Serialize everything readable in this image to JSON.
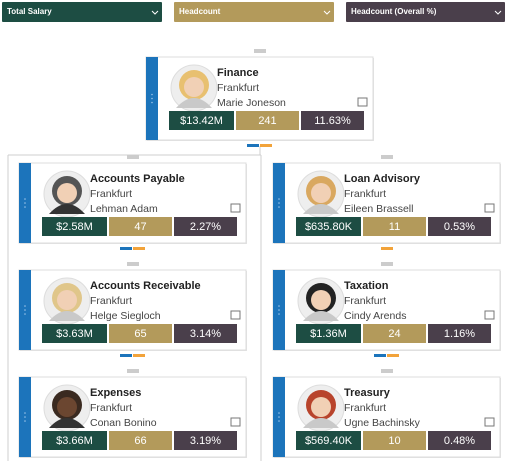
{
  "dropdowns": [
    "Total Salary",
    "Headcount",
    "Headcount (Overall %)"
  ],
  "nodes": [
    {
      "title": "Finance",
      "city": "Frankfurt",
      "person": "Marie Joneson",
      "metrics": [
        "$13.42M",
        "241",
        "11.63%"
      ]
    },
    {
      "title": "Accounts Payable",
      "city": "Frankfurt",
      "person": "Lehman Adam",
      "metrics": [
        "$2.58M",
        "47",
        "2.27%"
      ]
    },
    {
      "title": "Loan Advisory",
      "city": "Frankfurt",
      "person": "Eileen Brassell",
      "metrics": [
        "$635.80K",
        "11",
        "0.53%"
      ]
    },
    {
      "title": "Accounts Receivable",
      "city": "Frankfurt",
      "person": "Helge Siegloch",
      "metrics": [
        "$3.63M",
        "65",
        "3.14%"
      ]
    },
    {
      "title": "Taxation",
      "city": "Frankfurt",
      "person": "Cindy Arends",
      "metrics": [
        "$1.36M",
        "24",
        "1.16%"
      ]
    },
    {
      "title": "Expenses",
      "city": "Frankfurt",
      "person": "Conan Bonino",
      "metrics": [
        "$3.66M",
        "66",
        "3.19%"
      ]
    },
    {
      "title": "Treasury",
      "city": "Frankfurt",
      "person": "Ugne Bachinsky",
      "metrics": [
        "$569.40K",
        "10",
        "0.48%"
      ]
    }
  ]
}
